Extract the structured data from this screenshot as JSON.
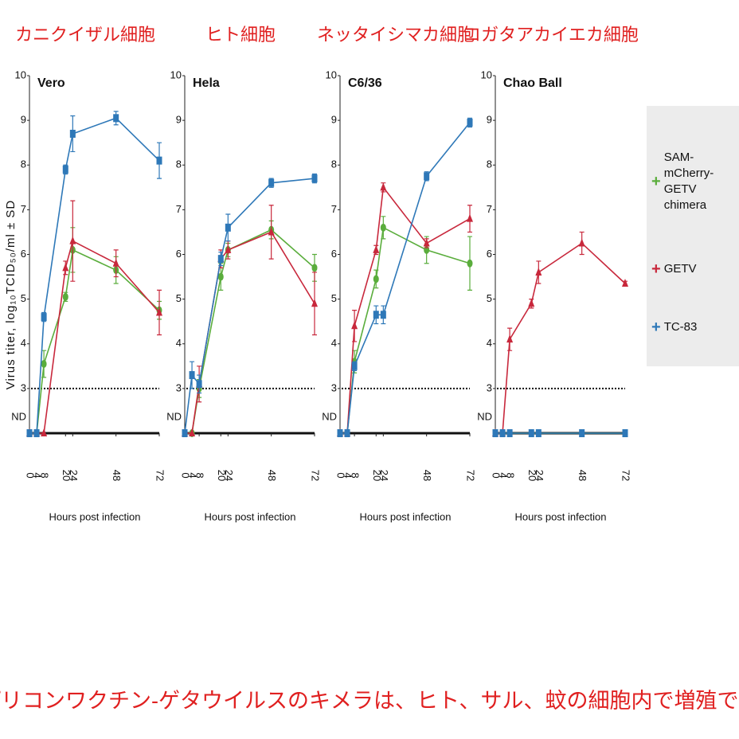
{
  "y_label": "Virus titer, log₁₀TCID₅₀/ml ± SD",
  "caption": "レプリコンワクチン-ゲタウイルスのキメラは、ヒト、サル、蚊の細胞内で増殖できる",
  "chart_data": [
    {
      "type": "line",
      "header": "カニクイザル細胞",
      "title": "Vero",
      "x_label": "Hours post infection",
      "x": [
        0,
        4,
        8,
        20,
        24,
        48,
        72
      ],
      "xlim": [
        0,
        72
      ],
      "xticks": [
        0,
        4,
        8,
        20,
        24,
        48,
        72
      ],
      "ylim": [
        2,
        10
      ],
      "yticks": [
        {
          "value": 2,
          "label": "ND"
        },
        3,
        4,
        5,
        6,
        7,
        8,
        9,
        10
      ],
      "detection_limit": 3,
      "series": [
        {
          "name": "SAM-mCherry-GETV chimera",
          "color": "#5aad3c",
          "marker": "circle",
          "values": [
            2,
            2,
            3.55,
            5.05,
            6.1,
            5.65,
            4.75
          ],
          "errors": [
            0,
            0,
            0.3,
            0.1,
            0.5,
            0.3,
            0.2
          ]
        },
        {
          "name": "GETV",
          "color": "#c8283c",
          "marker": "triangle",
          "values": [
            2,
            2,
            2,
            5.7,
            6.3,
            5.8,
            4.7
          ],
          "errors": [
            0,
            0,
            0,
            0.15,
            0.9,
            0.3,
            0.5
          ]
        },
        {
          "name": "TC-83",
          "color": "#2e78b8",
          "marker": "square",
          "values": [
            2,
            2,
            4.6,
            7.9,
            8.7,
            9.05,
            8.1
          ],
          "errors": [
            0,
            0,
            0.1,
            0.1,
            0.4,
            0.15,
            0.4
          ]
        }
      ]
    },
    {
      "type": "line",
      "header": "ヒト細胞",
      "title": "Hela",
      "x_label": "Hours post infection",
      "x": [
        0,
        4,
        8,
        20,
        24,
        48,
        72
      ],
      "xlim": [
        0,
        72
      ],
      "xticks": [
        0,
        4,
        8,
        20,
        24,
        48,
        72
      ],
      "ylim": [
        2,
        10
      ],
      "yticks": [
        {
          "value": 2,
          "label": "ND"
        },
        3,
        4,
        5,
        6,
        7,
        8,
        9,
        10
      ],
      "detection_limit": 3,
      "series": [
        {
          "color": "#5aad3c",
          "marker": "circle",
          "values": [
            2,
            2,
            3.0,
            5.5,
            6.1,
            6.55,
            5.7
          ],
          "errors": [
            0,
            0,
            0.2,
            0.3,
            0.15,
            0.2,
            0.3
          ]
        },
        {
          "color": "#c8283c",
          "marker": "triangle",
          "values": [
            2,
            2,
            3.1,
            5.9,
            6.1,
            6.5,
            4.9
          ],
          "errors": [
            0,
            0,
            0.4,
            0.2,
            0.2,
            0.6,
            0.7
          ]
        },
        {
          "color": "#2e78b8",
          "marker": "square",
          "values": [
            2,
            3.3,
            3.1,
            5.9,
            6.6,
            7.6,
            7.7
          ],
          "errors": [
            0,
            0.3,
            0.2,
            0.15,
            0.3,
            0.1,
            0.1
          ]
        }
      ]
    },
    {
      "type": "line",
      "header": "ネッタイシマカ細胞",
      "title": "C6/36",
      "x_label": "Hours post infection",
      "x": [
        0,
        4,
        8,
        20,
        24,
        48,
        72
      ],
      "xlim": [
        0,
        72
      ],
      "xticks": [
        0,
        4,
        8,
        20,
        24,
        48,
        72
      ],
      "ylim": [
        2,
        10
      ],
      "yticks": [
        {
          "value": 2,
          "label": "ND"
        },
        3,
        4,
        5,
        6,
        7,
        8,
        9,
        10
      ],
      "detection_limit": 3,
      "series": [
        {
          "color": "#5aad3c",
          "marker": "circle",
          "values": [
            2,
            2,
            3.6,
            5.45,
            6.6,
            6.1,
            5.8
          ],
          "errors": [
            0,
            0,
            0.25,
            0.2,
            0.25,
            0.3,
            0.6
          ]
        },
        {
          "color": "#c8283c",
          "marker": "triangle",
          "values": [
            2,
            2,
            4.4,
            6.1,
            7.5,
            6.25,
            6.8
          ],
          "errors": [
            0,
            0,
            0.35,
            0.1,
            0.1,
            0.1,
            0.3
          ]
        },
        {
          "color": "#2e78b8",
          "marker": "square",
          "values": [
            2,
            2,
            3.5,
            4.65,
            4.65,
            7.75,
            8.95
          ],
          "errors": [
            0,
            0,
            0.1,
            0.2,
            0.2,
            0.1,
            0.1
          ]
        }
      ]
    },
    {
      "type": "line",
      "header": "コガタアカイエカ細胞",
      "title": "Chao Ball",
      "x_label": "Hours post infection",
      "x": [
        0,
        4,
        8,
        20,
        24,
        48,
        72
      ],
      "xlim": [
        0,
        72
      ],
      "xticks": [
        0,
        4,
        8,
        20,
        24,
        48,
        72
      ],
      "ylim": [
        2,
        10
      ],
      "yticks": [
        {
          "value": 2,
          "label": "ND"
        },
        3,
        4,
        5,
        6,
        7,
        8,
        9,
        10
      ],
      "detection_limit": 3,
      "series": [
        {
          "color": "#5aad3c",
          "marker": "circle",
          "values": [
            2,
            2,
            2,
            2,
            2,
            2,
            2
          ],
          "errors": [
            0,
            0,
            0,
            0,
            0,
            0,
            0
          ]
        },
        {
          "color": "#c8283c",
          "marker": "triangle",
          "values": [
            2,
            2,
            4.1,
            4.9,
            5.6,
            6.25,
            5.35
          ],
          "errors": [
            0,
            0,
            0.25,
            0.1,
            0.25,
            0.25,
            0.05
          ]
        },
        {
          "color": "#2e78b8",
          "marker": "square",
          "values": [
            2,
            2,
            2,
            2,
            2,
            2,
            2
          ],
          "errors": [
            0,
            0,
            0,
            0,
            0,
            0,
            0
          ]
        }
      ]
    }
  ]
}
